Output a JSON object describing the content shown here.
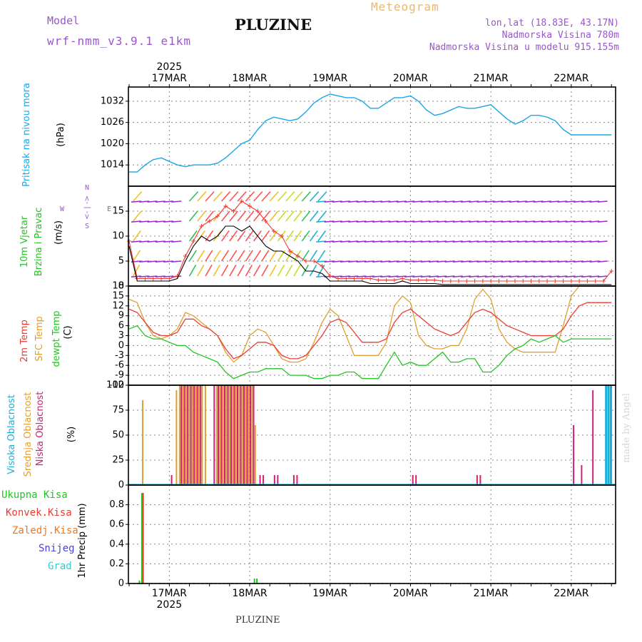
{
  "header": {
    "model_label": "Model",
    "model_name": "wrf-nmm_v3.9.1 e1km",
    "station": "PLUZINE",
    "title": "Meteogram",
    "lonlat": "lon,lat (18.83E, 43.17N)",
    "elevation": "Nadmorska Visina 780m",
    "elevation_model": "Nadmorska Visina u modelu 915.155m",
    "footer_station": "PLUZINE",
    "credit": "made by Angel"
  },
  "colors": {
    "pressure": "#1ba6e8",
    "temp2m": "#ee3b32",
    "sfc": "#e0a030",
    "dewpt": "#22c522",
    "wind_mag": "#9933cc",
    "high_cloud": "#18b0d8",
    "mid_cloud": "#e0a030",
    "low_cloud": "#cc2277",
    "total_precip": "#22c522",
    "conv_precip": "#ee3b32",
    "frz_precip": "#ee7722",
    "snow": "#4444dd",
    "graupel": "#33cccc"
  },
  "chart_data": [
    {
      "type": "line",
      "panel": "pressure",
      "ylabel_title": "Pritisak na nivou mora",
      "ylabel_unit": "(hPa)",
      "ylim": [
        1008,
        1036
      ],
      "yticks": [
        1014,
        1020,
        1026,
        1032
      ],
      "x_day_offsets": [
        0,
        0.1,
        0.2,
        0.3,
        0.4,
        0.5,
        0.6,
        0.7,
        0.8,
        0.9,
        1.0,
        1.1,
        1.2,
        1.3,
        1.4,
        1.5,
        1.6,
        1.7,
        1.8,
        1.9,
        2.0,
        2.1,
        2.2,
        2.3,
        2.4,
        2.5,
        2.6,
        2.7,
        2.8,
        2.9,
        3.0,
        3.1,
        3.2,
        3.3,
        3.4,
        3.5,
        3.6,
        3.7,
        3.8,
        3.9,
        4.0,
        4.1,
        4.2,
        4.3,
        4.4,
        4.5,
        4.6,
        4.7,
        4.8,
        4.9,
        5.0,
        5.1,
        5.2,
        5.3,
        5.4,
        5.5,
        5.6,
        5.7,
        5.8,
        5.9,
        6.0
      ],
      "series": [
        {
          "name": "Pritisak na nivou mora",
          "values": [
            1012,
            1012,
            1014,
            1015.5,
            1016,
            1015,
            1014,
            1013.5,
            1014,
            1014,
            1014,
            1014.5,
            1016,
            1018,
            1020,
            1021,
            1024,
            1026.5,
            1027.5,
            1027,
            1026.5,
            1027,
            1029,
            1031.5,
            1033,
            1034,
            1033.5,
            1033,
            1033,
            1032,
            1030,
            1030,
            1031.5,
            1033,
            1033,
            1033.5,
            1032,
            1029.5,
            1028,
            1028.5,
            1029.5,
            1030.5,
            1030,
            1030,
            1030.5,
            1031,
            1029,
            1027,
            1025.5,
            1026.5,
            1028,
            1028,
            1027.5,
            1026.5,
            1024,
            1022.5,
            1022.5,
            1022.5,
            1022.5,
            1022.5,
            1022.5
          ]
        }
      ]
    },
    {
      "type": "line",
      "panel": "wind",
      "ylabel_title": "10m Vjetar",
      "ylabel_subtitle": "Brzina i Pravac",
      "ylabel_unit": "(m/s)",
      "compass": {
        "n": "N",
        "s": "S",
        "e": "E",
        "w": "W",
        "arrows": "<- | ->"
      },
      "ylim": [
        0,
        20
      ],
      "yticks": [
        0,
        5,
        10,
        15
      ],
      "x_day_offsets": [
        0,
        0.1,
        0.2,
        0.3,
        0.4,
        0.5,
        0.6,
        0.7,
        0.8,
        0.9,
        1.0,
        1.1,
        1.2,
        1.3,
        1.4,
        1.5,
        1.6,
        1.7,
        1.8,
        1.9,
        2.0,
        2.1,
        2.2,
        2.3,
        2.4,
        2.5,
        2.6,
        2.7,
        2.8,
        2.9,
        3.0,
        3.1,
        3.2,
        3.3,
        3.4,
        3.5,
        3.6,
        3.7,
        3.8,
        3.9,
        4.0,
        4.1,
        4.2,
        4.3,
        4.4,
        4.5,
        4.6,
        4.7,
        4.8,
        4.9,
        5.0,
        5.1,
        5.2,
        5.3,
        5.4,
        5.5,
        5.6,
        5.7,
        5.8,
        5.9,
        6.0
      ],
      "series": [
        {
          "name": "wind speed",
          "values": [
            8,
            1,
            1,
            1,
            1,
            1,
            1.5,
            5,
            8,
            10,
            9,
            10,
            12,
            12,
            11,
            12,
            10,
            8,
            7,
            7,
            6,
            5,
            3,
            3,
            2.5,
            1,
            1,
            1,
            1,
            1,
            0.5,
            0.5,
            0.5,
            0.5,
            1,
            0.5,
            0.5,
            0.5,
            0.5,
            0.3,
            0.3,
            0.3,
            0.3,
            0.3,
            0.3,
            0.3,
            0.3,
            0.3,
            0.3,
            0.3,
            0.3,
            0.3,
            0.3,
            0.3,
            0.3,
            0.3,
            0.3,
            0.3,
            0.3,
            0.3,
            0.3
          ]
        },
        {
          "name": "gust",
          "values": [
            9,
            1.5,
            1.5,
            1.5,
            1.5,
            1.5,
            2,
            6,
            9,
            12,
            13,
            14,
            16,
            15,
            17,
            16,
            15,
            13,
            11,
            10,
            7,
            6,
            5,
            5,
            4,
            2,
            1.5,
            1.5,
            1.5,
            1.5,
            1.5,
            1.2,
            1.2,
            1.2,
            1.5,
            1.2,
            1.2,
            1.2,
            1.2,
            1,
            1,
            1,
            1,
            1,
            1,
            1,
            1,
            1,
            1,
            1,
            1,
            1,
            1,
            1,
            1,
            1,
            1,
            1,
            1,
            1,
            3
          ]
        }
      ]
    },
    {
      "type": "line",
      "panel": "temperature",
      "ylabel_titles": [
        "2m Temp",
        "SFC Temp",
        "dewpt Temp"
      ],
      "ylabel_unit": "(C)",
      "ylim": [
        -12,
        18
      ],
      "yticks": [
        -12,
        -9,
        -6,
        -3,
        0,
        3,
        6,
        9,
        12,
        15,
        18
      ],
      "x_day_offsets": [
        0,
        0.1,
        0.2,
        0.3,
        0.4,
        0.5,
        0.6,
        0.7,
        0.8,
        0.9,
        1.0,
        1.1,
        1.2,
        1.3,
        1.4,
        1.5,
        1.6,
        1.7,
        1.8,
        1.9,
        2.0,
        2.1,
        2.2,
        2.3,
        2.4,
        2.5,
        2.6,
        2.7,
        2.8,
        2.9,
        3.0,
        3.1,
        3.2,
        3.3,
        3.4,
        3.5,
        3.6,
        3.7,
        3.8,
        3.9,
        4.0,
        4.1,
        4.2,
        4.3,
        4.4,
        4.5,
        4.6,
        4.7,
        4.8,
        4.9,
        5.0,
        5.1,
        5.2,
        5.3,
        5.4,
        5.5,
        5.6,
        5.7,
        5.8,
        5.9,
        6.0
      ],
      "series": [
        {
          "name": "2m Temp",
          "values": [
            11,
            10,
            7,
            4,
            3,
            3,
            4,
            8,
            8,
            6,
            5,
            3,
            -1,
            -4,
            -3,
            -1,
            1,
            1,
            0,
            -3,
            -4,
            -4,
            -3,
            0,
            3,
            7,
            8,
            7,
            4,
            1,
            1,
            1,
            2,
            7,
            10,
            11,
            9,
            7,
            5,
            4,
            3,
            4,
            7,
            10,
            11,
            10,
            8,
            6,
            5,
            4,
            3,
            3,
            3,
            3,
            5,
            9,
            12,
            13,
            13,
            13,
            13
          ]
        },
        {
          "name": "SFC Temp",
          "values": [
            14,
            13,
            7,
            3,
            2,
            3,
            5,
            10,
            9,
            7,
            5,
            3,
            -2,
            -5,
            -3,
            3,
            5,
            4,
            0,
            -4,
            -5,
            -5,
            -4,
            1,
            7,
            11,
            9,
            3,
            -3,
            -3,
            -3,
            -3,
            1,
            12,
            15,
            13,
            3,
            0,
            -1,
            -1,
            0,
            0,
            5,
            14,
            17,
            14,
            5,
            1,
            -1,
            -2,
            -2,
            -2,
            -2,
            -2,
            6,
            15,
            18,
            18,
            18,
            18,
            18
          ]
        },
        {
          "name": "dewpt Temp",
          "values": [
            5,
            6,
            3,
            2,
            2,
            1,
            0,
            0,
            -2,
            -3,
            -4,
            -5,
            -8,
            -10,
            -9,
            -8,
            -8,
            -7,
            -7,
            -7,
            -9,
            -9,
            -9,
            -10,
            -10,
            -9,
            -9,
            -8,
            -8,
            -10,
            -10,
            -10,
            -6,
            -2,
            -6,
            -5,
            -6,
            -6,
            -4,
            -2,
            -5,
            -5,
            -4,
            -4,
            -8,
            -8,
            -6,
            -3,
            -1,
            0,
            2,
            1,
            2,
            3,
            1,
            2,
            2,
            2,
            2,
            2,
            2
          ]
        }
      ]
    },
    {
      "type": "bar",
      "panel": "clouds",
      "ylabel_titles": [
        "Visoka Oblacnost",
        "Srednja Oblacnost",
        "Niska Oblacnost"
      ],
      "ylabel_unit": "(%)",
      "ylim": [
        0,
        100
      ],
      "yticks": [
        0,
        25,
        50,
        75,
        100
      ],
      "series": [
        {
          "name": "Visoka Oblacnost",
          "x": [
            5.92,
            5.95,
            5.98
          ],
          "values": [
            100,
            100,
            100
          ]
        },
        {
          "name": "Srednja Oblacnost",
          "x": [
            0.16,
            0.58,
            0.62,
            0.66,
            0.7,
            0.74,
            0.78,
            0.82,
            0.86,
            0.9,
            0.94,
            1.08,
            1.12,
            1.16,
            1.2,
            1.24,
            1.28,
            1.32,
            1.36,
            1.4,
            1.44,
            1.48,
            1.52,
            1.56
          ],
          "values": [
            85,
            95,
            100,
            100,
            100,
            100,
            100,
            100,
            100,
            100,
            100,
            100,
            100,
            100,
            100,
            100,
            100,
            100,
            100,
            100,
            100,
            100,
            100,
            60
          ]
        },
        {
          "name": "Niska Oblacnost",
          "x": [
            0.52,
            0.64,
            0.68,
            0.72,
            0.76,
            0.8,
            0.84,
            0.88,
            1.05,
            1.1,
            1.14,
            1.18,
            1.22,
            1.26,
            1.3,
            1.34,
            1.38,
            1.42,
            1.46,
            1.5,
            1.54,
            1.62,
            1.66,
            1.8,
            1.84,
            2.04,
            2.08,
            3.52,
            3.56,
            4.32,
            4.36,
            5.52,
            5.62,
            5.76
          ],
          "values": [
            10,
            100,
            100,
            100,
            100,
            100,
            100,
            100,
            100,
            100,
            100,
            100,
            100,
            100,
            100,
            100,
            100,
            100,
            100,
            100,
            100,
            10,
            10,
            10,
            10,
            10,
            10,
            10,
            10,
            10,
            10,
            60,
            20,
            95
          ]
        }
      ]
    },
    {
      "type": "bar",
      "panel": "precipitation",
      "legend": [
        "Ukupna Kisa",
        "Konvek.Kisa",
        "Zaledj.Kisa",
        "Snijeg",
        "Grad"
      ],
      "ylabel_unit": "1hr Precip (mm)",
      "ylim": [
        0,
        1.0
      ],
      "yticks": [
        0,
        0.2,
        0.4,
        0.6,
        0.8
      ],
      "series": [
        {
          "name": "Ukupna Kisa",
          "x": [
            0.12,
            0.15,
            1.55,
            1.58
          ],
          "values": [
            0.03,
            0.92,
            0.05,
            0.05
          ]
        },
        {
          "name": "Konvek.Kisa",
          "x": [
            0.165
          ],
          "values": [
            0.92
          ]
        }
      ]
    },
    {
      "type": "axis",
      "panel": "time",
      "year": "2025",
      "xlim_days": [
        0,
        6
      ],
      "day_labels": [
        "17MAR",
        "18MAR",
        "19MAR",
        "20MAR",
        "21MAR",
        "22MAR"
      ],
      "day_label_offsets": [
        0.5,
        1.5,
        2.5,
        3.5,
        4.5,
        5.5
      ]
    }
  ]
}
